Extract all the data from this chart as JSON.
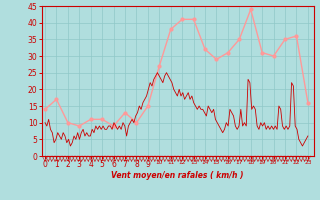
{
  "xlabel": "Vent moyen/en rafales ( km/h )",
  "xlabel_color": "#cc0000",
  "background_color": "#b0dede",
  "grid_color": "#90c8c8",
  "axis_color": "#cc0000",
  "tick_color": "#cc0000",
  "ylim": [
    0,
    45
  ],
  "yticks": [
    0,
    5,
    10,
    15,
    20,
    25,
    30,
    35,
    40,
    45
  ],
  "xticks": [
    0,
    1,
    2,
    3,
    4,
    5,
    6,
    7,
    8,
    9,
    10,
    11,
    12,
    13,
    14,
    15,
    16,
    17,
    18,
    19,
    20,
    21,
    22,
    23
  ],
  "mean_color": "#ff9999",
  "gust_color": "#cc0000",
  "mean_x": [
    0,
    1,
    2,
    3,
    4,
    5,
    6,
    7,
    8,
    9,
    10,
    11,
    12,
    13,
    14,
    15,
    16,
    17,
    18,
    19,
    20,
    21,
    22,
    23
  ],
  "mean_y": [
    14,
    17,
    10,
    9,
    11,
    11,
    9,
    13,
    10,
    15,
    27,
    38,
    41,
    41,
    32,
    29,
    31,
    35,
    44,
    31,
    30,
    35,
    36,
    16
  ],
  "gust_y": [
    10,
    9,
    11,
    8,
    7,
    4,
    5,
    7,
    6,
    5,
    7,
    6,
    4,
    5,
    3,
    4,
    6,
    5,
    7,
    5,
    7,
    8,
    6,
    7,
    6,
    6,
    8,
    7,
    9,
    8,
    9,
    8,
    9,
    8,
    8,
    9,
    9,
    8,
    10,
    9,
    8,
    9,
    8,
    10,
    9,
    6,
    9,
    10,
    11,
    10,
    12,
    13,
    15,
    14,
    16,
    17,
    18,
    20,
    22,
    21,
    23,
    24,
    25,
    24,
    23,
    22,
    24,
    25,
    24,
    23,
    22,
    20,
    19,
    18,
    20,
    18,
    19,
    17,
    18,
    19,
    17,
    18,
    16,
    15,
    14,
    15,
    14,
    14,
    13,
    12,
    15,
    14,
    13,
    14,
    11,
    10,
    9,
    8,
    7,
    8,
    10,
    9,
    14,
    13,
    12,
    9,
    8,
    9,
    14,
    9,
    10,
    9,
    23,
    22,
    14,
    15,
    14,
    9,
    8,
    10,
    9,
    10,
    8,
    9,
    8,
    9,
    8,
    9,
    8,
    15,
    14,
    9,
    8,
    9,
    8,
    9,
    22,
    21,
    9,
    8,
    5,
    4,
    3,
    4,
    5,
    6
  ]
}
